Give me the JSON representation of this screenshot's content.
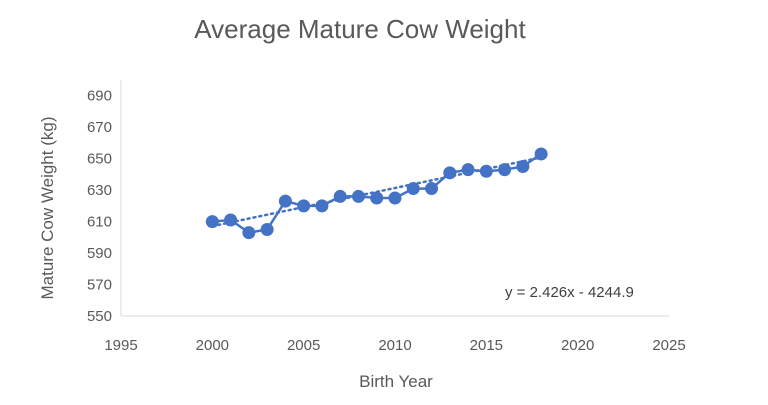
{
  "chart_data": {
    "type": "scatter",
    "title": "Average Mature Cow Weight",
    "xlabel": "Birth Year",
    "ylabel": "Mature Cow Weight (kg)",
    "xlim": [
      1995,
      2025
    ],
    "ylim": [
      550,
      700
    ],
    "xticks": [
      1995,
      2000,
      2005,
      2010,
      2015,
      2020,
      2025
    ],
    "yticks": [
      550,
      570,
      590,
      610,
      630,
      650,
      670,
      690
    ],
    "grid": false,
    "legend": "none",
    "series": [
      {
        "x": [
          2000,
          2001,
          2002,
          2003,
          2004,
          2005,
          2006,
          2007,
          2008,
          2009,
          2010,
          2011,
          2012,
          2013,
          2014,
          2015,
          2016,
          2017,
          2018
        ],
        "y": [
          610,
          611,
          603,
          605,
          623,
          620,
          620,
          626,
          626,
          625,
          625,
          631,
          631,
          641,
          643,
          642,
          643,
          645,
          653
        ],
        "color": "#4472C4",
        "mode": "lines+markers"
      }
    ],
    "trendline": {
      "type": "linear",
      "slope": 2.426,
      "intercept": -4244.9,
      "style": "dotted",
      "color": "#4472C4",
      "x_range": [
        2000,
        2018
      ]
    },
    "annotation": "y = 2.426x - 4244.9"
  }
}
